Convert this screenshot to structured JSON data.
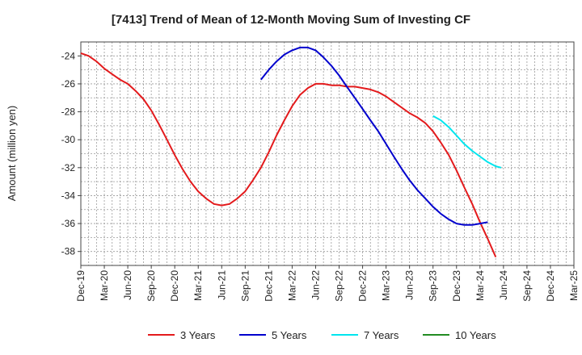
{
  "chart_data": {
    "type": "line",
    "title": "[7413]  Trend of Mean of 12-Month Moving Sum of Investing CF",
    "xlabel": "",
    "ylabel": "Amount (million yen)",
    "ylim": [
      -39,
      -23
    ],
    "yticks": [
      -24,
      -26,
      -28,
      -30,
      -32,
      -34,
      -36,
      -38
    ],
    "grid": true,
    "legend_position": "bottom",
    "categories": [
      "Dec-19",
      "Mar-20",
      "Jun-20",
      "Sep-20",
      "Dec-20",
      "Mar-21",
      "Jun-21",
      "Sep-21",
      "Dec-21",
      "Mar-22",
      "Jun-22",
      "Sep-22",
      "Dec-22",
      "Mar-23",
      "Jun-23",
      "Sep-23",
      "Dec-23",
      "Mar-24",
      "Jun-24",
      "Sep-24",
      "Dec-24",
      "Mar-25"
    ],
    "series": [
      {
        "name": "3 Years",
        "color": "#e31a1c",
        "points": [
          [
            0,
            -23.8
          ],
          [
            0.33,
            -24.0
          ],
          [
            0.67,
            -24.4
          ],
          [
            1,
            -24.9
          ],
          [
            1.33,
            -25.3
          ],
          [
            1.67,
            -25.7
          ],
          [
            2,
            -26.0
          ],
          [
            2.33,
            -26.5
          ],
          [
            2.67,
            -27.1
          ],
          [
            3,
            -27.9
          ],
          [
            3.33,
            -28.9
          ],
          [
            3.67,
            -30.0
          ],
          [
            4,
            -31.1
          ],
          [
            4.33,
            -32.1
          ],
          [
            4.67,
            -33.0
          ],
          [
            5,
            -33.7
          ],
          [
            5.33,
            -34.2
          ],
          [
            5.67,
            -34.6
          ],
          [
            6,
            -34.7
          ],
          [
            6.33,
            -34.6
          ],
          [
            6.67,
            -34.2
          ],
          [
            7,
            -33.7
          ],
          [
            7.33,
            -32.9
          ],
          [
            7.67,
            -32.0
          ],
          [
            8,
            -30.9
          ],
          [
            8.33,
            -29.7
          ],
          [
            8.67,
            -28.6
          ],
          [
            9,
            -27.6
          ],
          [
            9.33,
            -26.8
          ],
          [
            9.67,
            -26.3
          ],
          [
            10,
            -26.0
          ],
          [
            10.33,
            -26.0
          ],
          [
            10.67,
            -26.1
          ],
          [
            11,
            -26.1
          ],
          [
            11.33,
            -26.2
          ],
          [
            11.67,
            -26.2
          ],
          [
            12,
            -26.3
          ],
          [
            12.33,
            -26.4
          ],
          [
            12.67,
            -26.6
          ],
          [
            13,
            -26.9
          ],
          [
            13.33,
            -27.3
          ],
          [
            13.67,
            -27.7
          ],
          [
            14,
            -28.1
          ],
          [
            14.33,
            -28.4
          ],
          [
            14.67,
            -28.8
          ],
          [
            15,
            -29.4
          ],
          [
            15.33,
            -30.2
          ],
          [
            15.67,
            -31.1
          ],
          [
            16,
            -32.2
          ],
          [
            16.33,
            -33.4
          ],
          [
            16.67,
            -34.6
          ],
          [
            17,
            -35.9
          ],
          [
            17.33,
            -37.1
          ],
          [
            17.67,
            -38.4
          ]
        ]
      },
      {
        "name": "5 Years",
        "color": "#0000cd",
        "points": [
          [
            7.67,
            -25.7
          ],
          [
            8,
            -25.0
          ],
          [
            8.33,
            -24.4
          ],
          [
            8.67,
            -23.9
          ],
          [
            9,
            -23.6
          ],
          [
            9.33,
            -23.4
          ],
          [
            9.67,
            -23.4
          ],
          [
            10,
            -23.6
          ],
          [
            10.33,
            -24.1
          ],
          [
            10.67,
            -24.7
          ],
          [
            11,
            -25.4
          ],
          [
            11.33,
            -26.2
          ],
          [
            11.67,
            -27.0
          ],
          [
            12,
            -27.8
          ],
          [
            12.33,
            -28.6
          ],
          [
            12.67,
            -29.4
          ],
          [
            13,
            -30.3
          ],
          [
            13.33,
            -31.2
          ],
          [
            13.67,
            -32.1
          ],
          [
            14,
            -32.9
          ],
          [
            14.33,
            -33.6
          ],
          [
            14.67,
            -34.2
          ],
          [
            15,
            -34.8
          ],
          [
            15.33,
            -35.3
          ],
          [
            15.67,
            -35.7
          ],
          [
            16,
            -36.0
          ],
          [
            16.33,
            -36.1
          ],
          [
            16.67,
            -36.1
          ],
          [
            17,
            -36.0
          ],
          [
            17.33,
            -35.9
          ]
        ]
      },
      {
        "name": "7 Years",
        "color": "#00e5ee",
        "points": [
          [
            15,
            -28.3
          ],
          [
            15.33,
            -28.6
          ],
          [
            15.67,
            -29.1
          ],
          [
            16,
            -29.7
          ],
          [
            16.33,
            -30.3
          ],
          [
            16.67,
            -30.8
          ],
          [
            17,
            -31.2
          ],
          [
            17.33,
            -31.6
          ],
          [
            17.67,
            -31.9
          ],
          [
            17.9,
            -32.0
          ]
        ]
      },
      {
        "name": "10 Years",
        "color": "#228b22",
        "points": []
      }
    ]
  }
}
